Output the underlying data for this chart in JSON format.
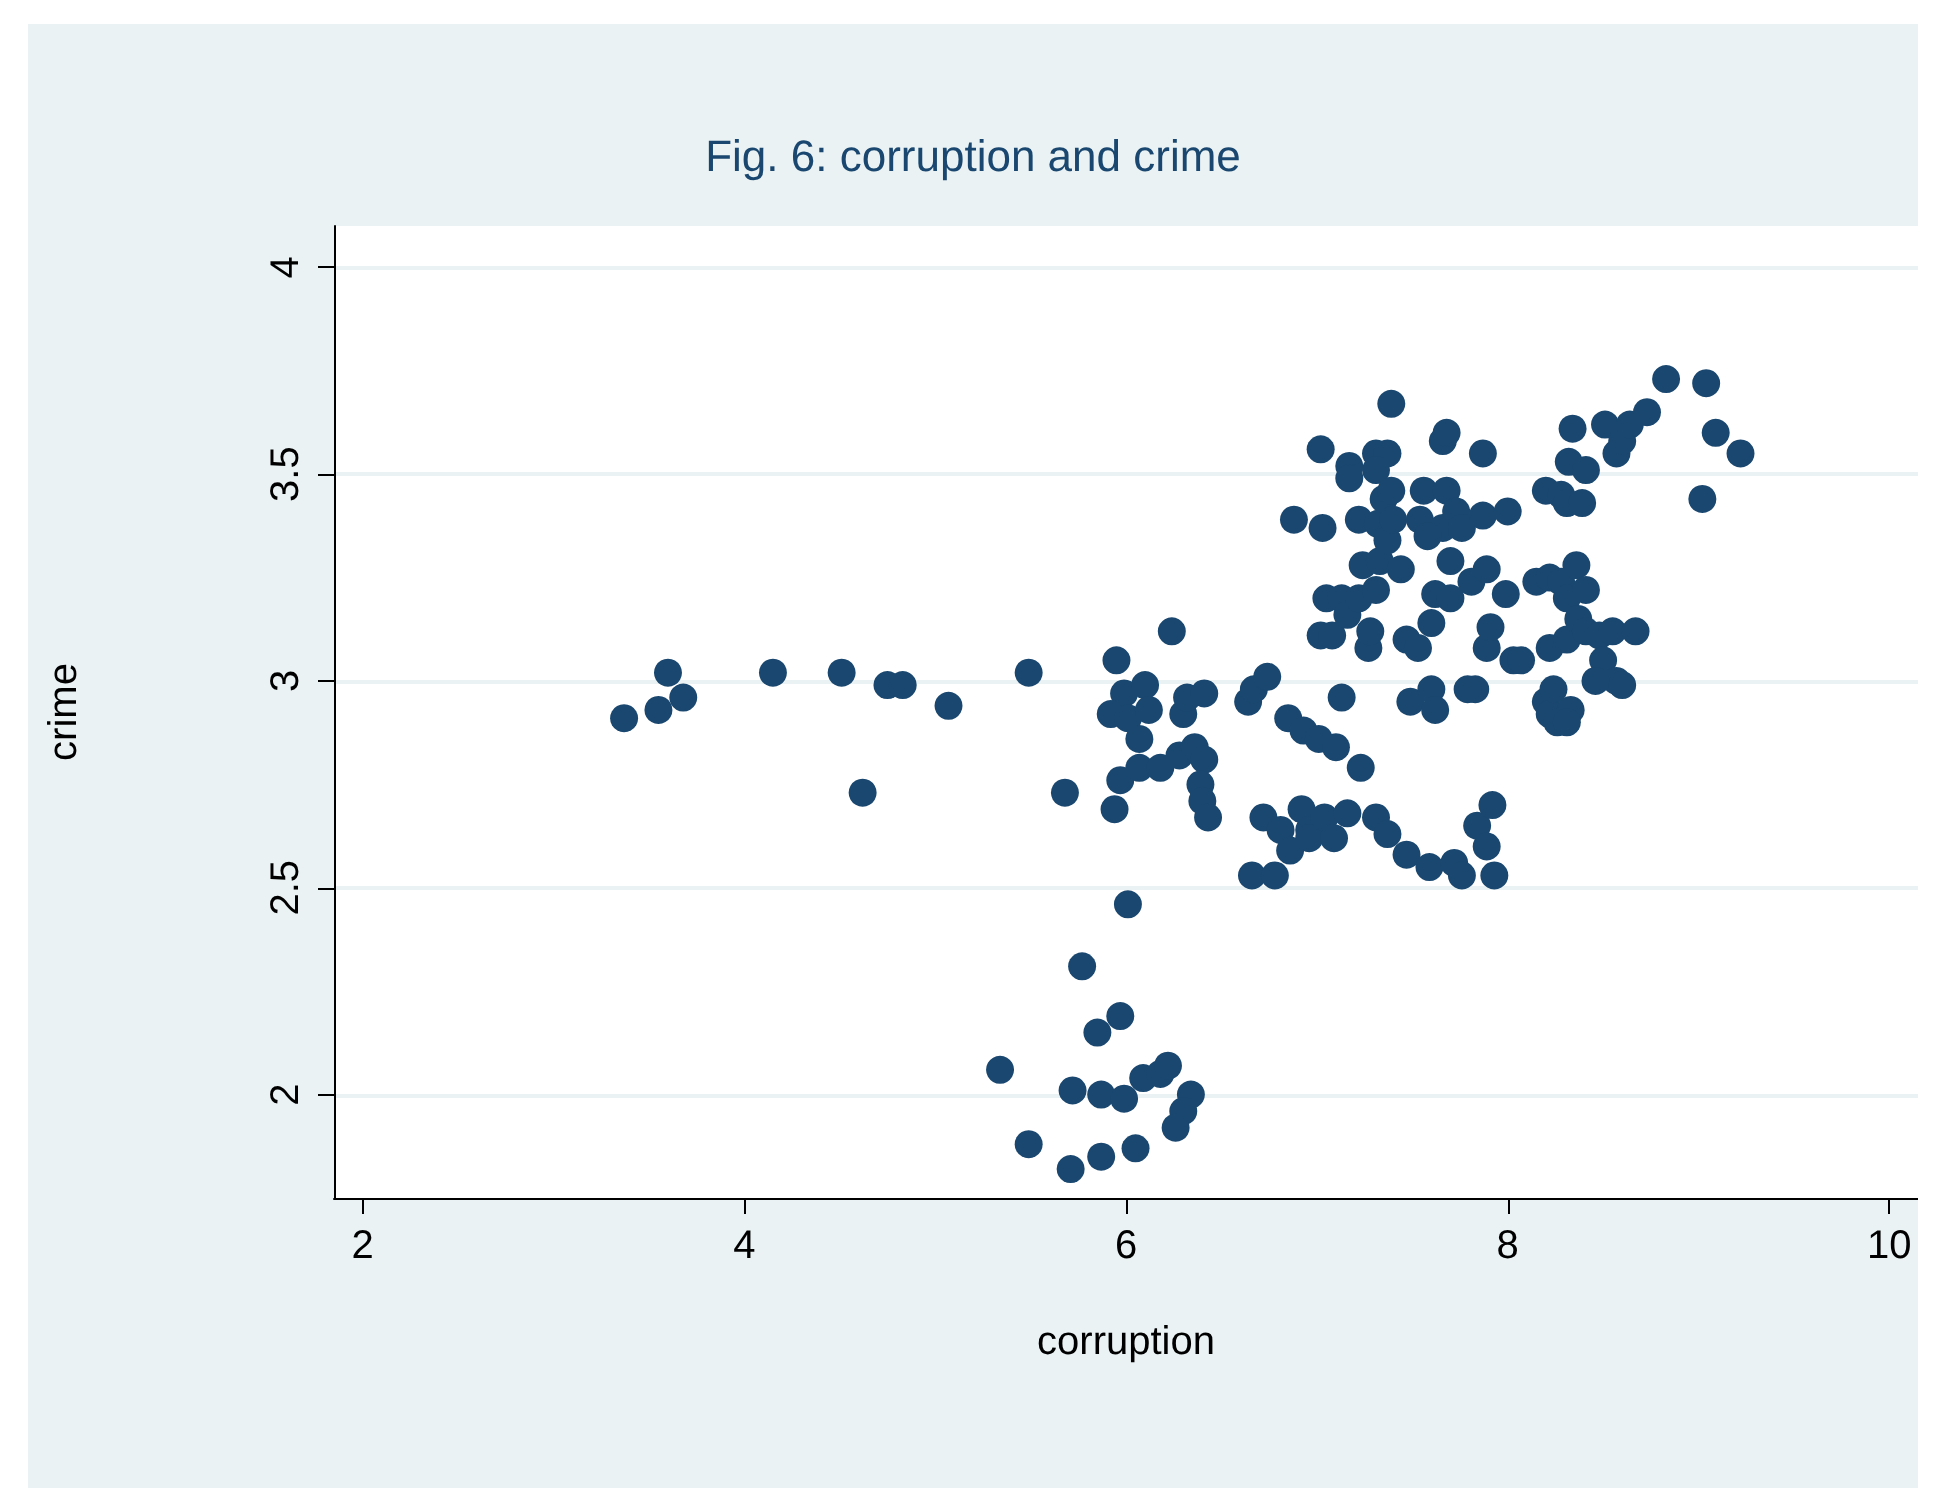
{
  "chart_data": {
    "type": "scatter",
    "title": "Fig. 6: corruption and crime",
    "xlabel": "corruption",
    "ylabel": "crime",
    "xlim": [
      1.85,
      10.15
    ],
    "ylim": [
      1.75,
      4.1
    ],
    "xticks": [
      2,
      4,
      6,
      8,
      10
    ],
    "yticks": [
      2,
      2.5,
      3,
      3.5,
      4
    ],
    "grid": "y",
    "marker": "circle",
    "series": [
      {
        "color": "#1a476f",
        "x": [
          3.37,
          3.55,
          3.6,
          3.68,
          4.15,
          4.51,
          4.75,
          4.83,
          4.62,
          5.07,
          5.49,
          5.68,
          5.95,
          5.99,
          5.92,
          6.01,
          6.1,
          6.12,
          6.07,
          5.97,
          6.07,
          6.18,
          5.94,
          6.24,
          6.3,
          6.32,
          6.41,
          6.28,
          6.36,
          6.41,
          6.39,
          6.4,
          6.43,
          6.01,
          5.77,
          5.97,
          5.85,
          5.34,
          5.72,
          5.87,
          5.99,
          6.09,
          6.18,
          6.22,
          6.34,
          6.3,
          6.26,
          5.49,
          5.71,
          5.87,
          6.05,
          6.64,
          6.67,
          6.74,
          6.88,
          7.02,
          7.03,
          7.13,
          7.02,
          7.08,
          7.05,
          7.17,
          7.17,
          7.22,
          7.31,
          7.39,
          7.37,
          7.31,
          7.24,
          7.13,
          7.16,
          7.22,
          7.32,
          7.35,
          7.39,
          7.27,
          7.28,
          7.31,
          7.33,
          7.37,
          7.4,
          7.44,
          7.47,
          7.49,
          7.53,
          7.54,
          7.56,
          7.6,
          7.62,
          7.6,
          7.62,
          7.66,
          7.66,
          7.68,
          7.68,
          7.7,
          7.73,
          7.76,
          7.81,
          7.83,
          7.79,
          7.87,
          7.87,
          7.89,
          7.91,
          7.99,
          8.0,
          8.03,
          8.07,
          8.15,
          7.89,
          7.7,
          7.58,
          6.85,
          6.93,
          7.01,
          7.1,
          7.23,
          6.72,
          6.81,
          6.66,
          6.78,
          6.86,
          6.92,
          6.96,
          6.96,
          7.04,
          7.09,
          7.16,
          7.31,
          7.37,
          7.47,
          7.59,
          7.72,
          7.76,
          7.93,
          7.84,
          7.89,
          7.92,
          8.2,
          8.28,
          8.31,
          8.34,
          8.32,
          8.41,
          8.39,
          8.51,
          8.57,
          8.6,
          8.64,
          8.73,
          8.83,
          9.04,
          9.09,
          9.22,
          9.02,
          8.22,
          8.28,
          8.36,
          8.31,
          8.41,
          8.22,
          8.31,
          8.37,
          8.41,
          8.48,
          8.55,
          8.67,
          8.5,
          8.57,
          8.46,
          8.6,
          8.2,
          8.22,
          8.26,
          8.33,
          8.31,
          8.24
        ],
        "values": [
          2.91,
          2.93,
          3.02,
          2.96,
          3.02,
          3.02,
          2.99,
          2.99,
          2.73,
          2.94,
          3.02,
          2.73,
          3.05,
          2.97,
          2.92,
          2.91,
          2.99,
          2.93,
          2.86,
          2.76,
          2.79,
          2.79,
          2.69,
          3.12,
          2.92,
          2.96,
          2.97,
          2.82,
          2.84,
          2.81,
          2.75,
          2.71,
          2.67,
          2.46,
          2.31,
          2.19,
          2.15,
          2.06,
          2.01,
          2.0,
          1.99,
          2.04,
          2.05,
          2.07,
          2.0,
          1.96,
          1.92,
          1.88,
          1.82,
          1.85,
          1.87,
          2.95,
          2.98,
          3.01,
          3.39,
          3.56,
          3.37,
          2.96,
          3.11,
          3.11,
          3.2,
          3.52,
          3.49,
          3.39,
          3.55,
          3.67,
          3.55,
          3.51,
          3.28,
          3.2,
          3.16,
          3.2,
          3.38,
          3.44,
          3.46,
          3.08,
          3.12,
          3.22,
          3.29,
          3.34,
          3.39,
          3.27,
          3.1,
          2.95,
          3.08,
          3.39,
          3.46,
          3.14,
          3.21,
          2.98,
          2.93,
          3.37,
          3.58,
          3.6,
          3.46,
          3.29,
          3.41,
          3.37,
          3.24,
          2.98,
          2.98,
          3.55,
          3.4,
          3.08,
          3.13,
          3.21,
          3.41,
          3.05,
          3.05,
          3.24,
          3.27,
          3.2,
          3.35,
          2.91,
          2.88,
          2.86,
          2.84,
          2.79,
          2.67,
          2.64,
          2.53,
          2.53,
          2.59,
          2.69,
          2.64,
          2.62,
          2.67,
          2.62,
          2.68,
          2.67,
          2.63,
          2.58,
          2.55,
          2.56,
          2.53,
          2.53,
          2.65,
          2.6,
          2.7,
          3.46,
          3.45,
          3.43,
          3.61,
          3.53,
          3.51,
          3.43,
          3.62,
          3.55,
          3.58,
          3.62,
          3.65,
          3.73,
          3.72,
          3.6,
          3.55,
          3.44,
          3.25,
          3.24,
          3.28,
          3.2,
          3.22,
          3.08,
          3.1,
          3.15,
          3.12,
          3.11,
          3.12,
          3.12,
          3.05,
          3.0,
          3.0,
          2.99,
          2.95,
          2.92,
          2.9,
          2.93,
          2.9,
          2.98
        ]
      }
    ]
  }
}
